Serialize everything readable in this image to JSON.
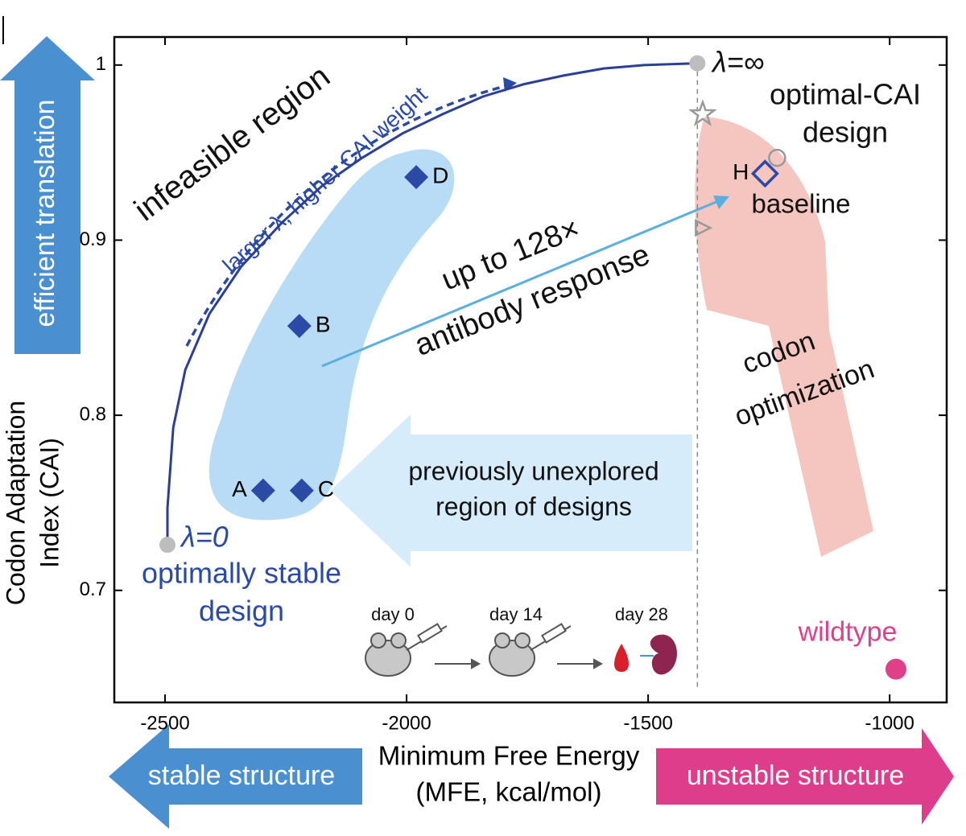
{
  "chart_data": {
    "type": "scatter",
    "xlabel": [
      "Minimum Free Energy",
      "(MFE, kcal/mol)"
    ],
    "ylabel": [
      "Codon Adaptation",
      "Index (CAI)"
    ],
    "xlim": [
      -2605,
      -882
    ],
    "ylim": [
      0.636,
      1.016
    ],
    "xticks": [
      -2500,
      -2000,
      -1500,
      -1000
    ],
    "yticks": [
      0.7,
      0.8,
      0.9,
      1
    ],
    "curve": {
      "color": "#2b3f96",
      "x": [
        -2495,
        -2495,
        -2483,
        -2458,
        -2408,
        -2342,
        -2258,
        -2175,
        -2092,
        -2008,
        -1925,
        -1842,
        -1758,
        -1675,
        -1592,
        -1508,
        -1398
      ],
      "y": [
        0.726,
        0.747,
        0.793,
        0.826,
        0.858,
        0.885,
        0.91,
        0.931,
        0.947,
        0.961,
        0.972,
        0.982,
        0.989,
        0.994,
        0.998,
        1.0,
        1.001
      ]
    },
    "designs": {
      "color": "#2b4aa6",
      "labels": [
        "A",
        "B",
        "C",
        "D"
      ],
      "x": [
        -2297,
        -2222,
        -2217,
        -1980
      ],
      "y": [
        0.757,
        0.851,
        0.757,
        0.936
      ]
    },
    "baseline": {
      "label": "H",
      "x": -1258,
      "y": 0.938,
      "color": "#2b4aa6"
    },
    "markers": [
      {
        "shape": "star",
        "x": -1387,
        "y": 0.972
      },
      {
        "shape": "circle",
        "x": -1233,
        "y": 0.947
      },
      {
        "shape": "triangle",
        "x": -1388,
        "y": 0.907
      }
    ],
    "endpoints": [
      {
        "label": "λ=0",
        "x": -2495,
        "y": 0.726,
        "caption": [
          "optimally stable",
          "design"
        ]
      },
      {
        "label": "λ=∞",
        "x": -1398,
        "y": 1.001,
        "caption": [
          "optimal-CAI",
          "design"
        ]
      }
    ],
    "wildtype": {
      "label": "wildtype",
      "x": -987,
      "y": 0.655,
      "color": "#e0408a"
    },
    "divider_x": -1398,
    "annotations": [
      "infeasible region",
      "larger λ, higher CAI weight",
      "up to 128×",
      "antibody response",
      "codon",
      "optimization",
      "previously unexplored",
      "region of designs",
      "baseline",
      "efficient translation",
      "stable structure",
      "unstable structure",
      "day 0",
      "day 14",
      "day 28"
    ]
  }
}
